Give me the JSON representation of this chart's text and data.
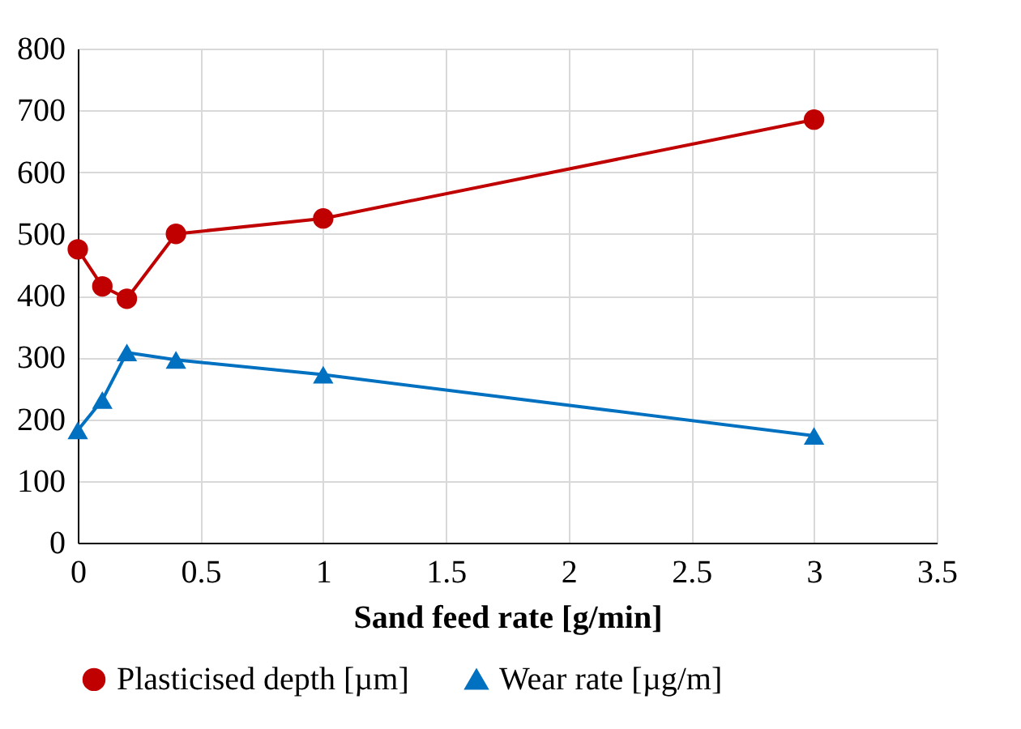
{
  "chart_data": {
    "type": "line",
    "xlabel": "Sand feed rate [g/min]",
    "x": [
      0,
      0.1,
      0.2,
      0.4,
      1,
      3
    ],
    "series": [
      {
        "name": "Plasticised depth [µm]",
        "color": "#c00000",
        "marker": "circle",
        "values": [
          475,
          415,
          395,
          500,
          525,
          685
        ]
      },
      {
        "name": "Wear rate [µg/m]",
        "color": "#0070c0",
        "marker": "triangle",
        "values": [
          182,
          231,
          308,
          296,
          272,
          173
        ]
      }
    ],
    "xlim": [
      0,
      3.5
    ],
    "xticks": [
      0,
      0.5,
      1,
      1.5,
      2,
      2.5,
      3,
      3.5
    ],
    "ylim": [
      0,
      800
    ],
    "yticks": [
      0,
      100,
      200,
      300,
      400,
      500,
      600,
      700,
      800
    ],
    "grid": true,
    "legend": "bottom"
  }
}
